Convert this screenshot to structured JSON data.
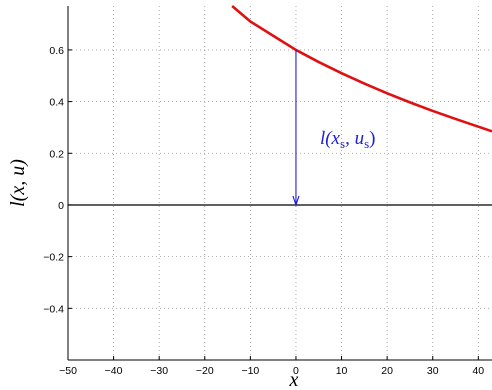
{
  "chart_data": {
    "type": "line",
    "xlabel": "x",
    "ylabel": "l(x, u)",
    "xlim": [
      -50,
      43
    ],
    "ylim": [
      -0.6,
      0.77
    ],
    "xticks": [
      -50,
      -40,
      -30,
      -20,
      -10,
      0,
      10,
      20,
      30,
      40
    ],
    "xtick_labels": [
      "−50",
      "−40",
      "−30",
      "−20",
      "−10",
      "0",
      "10",
      "20",
      "30",
      "40"
    ],
    "yticks": [
      -0.4,
      -0.2,
      0,
      0.2,
      0.4,
      0.6
    ],
    "ytick_labels": [
      "−0.4",
      "−0.2",
      "0",
      "0.2",
      "0.4",
      "0.6"
    ],
    "grid": true,
    "series": [
      {
        "color": "#e01010",
        "x": [
          -14,
          -10,
          -5,
          0,
          5,
          10,
          15,
          20,
          25,
          30,
          35,
          40,
          43
        ],
        "y": [
          0.77,
          0.71,
          0.655,
          0.6,
          0.553,
          0.51,
          0.47,
          0.432,
          0.397,
          0.364,
          0.333,
          0.303,
          0.285
        ]
      }
    ],
    "reference_line": {
      "y": 0,
      "color": "#000000"
    },
    "annotation": {
      "text_main": "l(x",
      "sub1": "s",
      "mid": ", u",
      "sub2": "s",
      "close": ")",
      "arrow_x": 0,
      "arrow_from_y": 0.6,
      "arrow_to_y": 0,
      "color": "#1f1fd6"
    }
  }
}
